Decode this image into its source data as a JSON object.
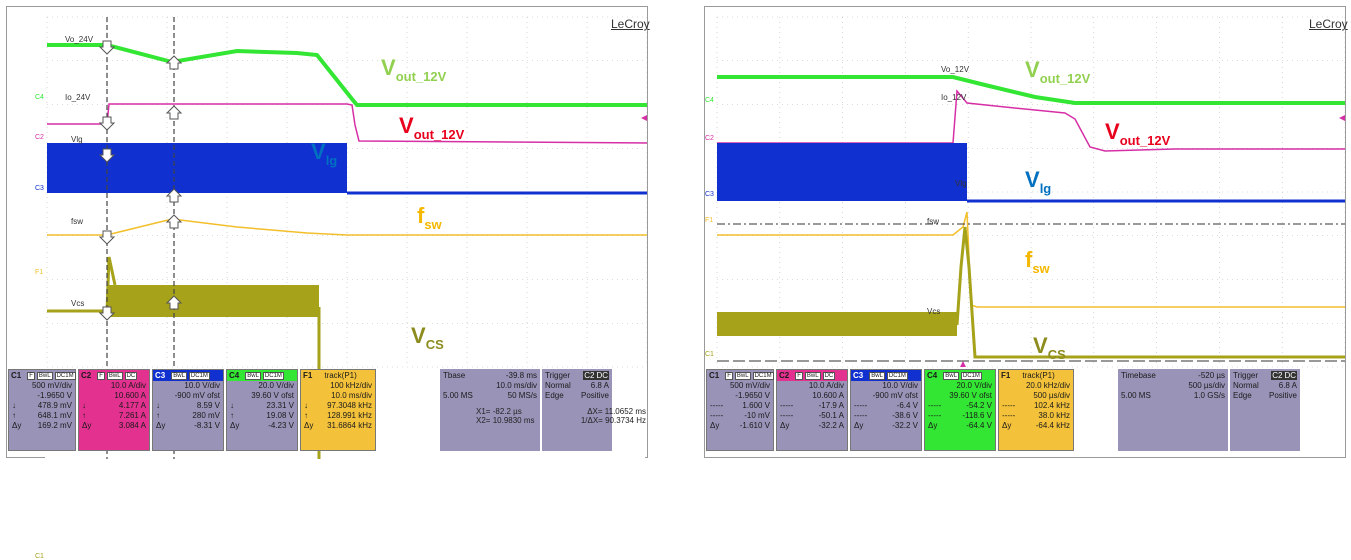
{
  "panels": [
    {
      "brand": "LeCroy",
      "labels": {
        "vout_green": {
          "main": "V",
          "sub": "out_12V"
        },
        "vout_red": {
          "main": "V",
          "sub": "out_12V"
        },
        "vlg": {
          "main": "V",
          "sub": "lg"
        },
        "fsw": {
          "main": "f",
          "sub": "sw"
        },
        "vcs": {
          "main": "V",
          "sub": "CS"
        }
      },
      "trace_tags": {
        "vo": "Vo_24V",
        "io": "Io_24V",
        "vlg": "Vlg",
        "fsw": "fsw",
        "vcs": "Vcs"
      },
      "channel_labels": [
        "C4",
        "C2",
        "C3",
        "F1",
        "C1"
      ],
      "channels": [
        {
          "name": "C1",
          "flags": [
            "F",
            "BwL",
            "DC1M"
          ],
          "rows": [
            [
              "",
              "500 mV/div"
            ],
            [
              "",
              "-1.9650 V"
            ],
            [
              "↓",
              "478.9 mV"
            ],
            [
              "↑",
              "648.1 mV"
            ],
            [
              "Δy",
              "169.2 mV"
            ]
          ]
        },
        {
          "name": "C2",
          "flags": [
            "F",
            "BwL",
            "DC"
          ],
          "rows": [
            [
              "",
              "10.0 A/div"
            ],
            [
              "",
              "10.600 A"
            ],
            [
              "↓",
              "4.177 A"
            ],
            [
              "↑",
              "7.261 A"
            ],
            [
              "Δy",
              "3.084 A"
            ]
          ]
        },
        {
          "name": "C3",
          "flags": [
            "BwL",
            "DC1M"
          ],
          "rows": [
            [
              "",
              "10.0 V/div"
            ],
            [
              "",
              "-900 mV ofst"
            ],
            [
              "↓",
              "8.59 V"
            ],
            [
              "↑",
              "280 mV"
            ],
            [
              "Δy",
              "-8.31 V"
            ]
          ]
        },
        {
          "name": "C4",
          "flags": [
            "BwL",
            "DC1M"
          ],
          "rows": [
            [
              "",
              "20.0 V/div"
            ],
            [
              "",
              "39.60 V ofst"
            ],
            [
              "↓",
              "23.31 V"
            ],
            [
              "↑",
              "19.08 V"
            ],
            [
              "Δy",
              "-4.23 V"
            ]
          ]
        },
        {
          "name": "F1",
          "title": "track(P1)",
          "rows": [
            [
              "",
              "100 kHz/div"
            ],
            [
              "",
              "10.0 ms/div"
            ],
            [
              "↓",
              "97.3048 kHz"
            ],
            [
              "↑",
              "128.991 kHz"
            ],
            [
              "Δy",
              "31.6864 kHz"
            ]
          ]
        }
      ],
      "timebase": {
        "label": "Tbase",
        "value": "-39.8 ms",
        "per_div": "10.0 ms/div",
        "samples": "5.00 MS",
        "rate": "50 MS/s"
      },
      "trigger": {
        "label": "Trigger",
        "channel": "C2",
        "coupling": "DC",
        "mode": "Normal",
        "level": "6.8 A",
        "type": "Edge",
        "slope": "Positive"
      },
      "cursors": {
        "x1_label": "X1=",
        "x1": "-82.2 µs",
        "dx_label": "ΔX=",
        "dx": "11.0652 ms",
        "x2_label": "X2=",
        "x2": "10.9830 ms",
        "inv_label": "1/ΔX=",
        "inv": "90.3734 Hz"
      }
    },
    {
      "brand": "LeCroy",
      "labels": {
        "vout_green": {
          "main": "V",
          "sub": "out_12V"
        },
        "vout_red": {
          "main": "V",
          "sub": "out_12V"
        },
        "vlg": {
          "main": "V",
          "sub": "lg"
        },
        "fsw": {
          "main": "f",
          "sub": "sw"
        },
        "vcs": {
          "main": "V",
          "sub": "CS"
        }
      },
      "trace_tags": {
        "vo": "Vo_12V",
        "io": "Io_12V",
        "vlg": "Vlg",
        "fsw": "fsw",
        "vcs": "Vcs"
      },
      "channel_labels": [
        "C4",
        "C2",
        "C3",
        "F1",
        "C1"
      ],
      "channels": [
        {
          "name": "C1",
          "flags": [
            "F",
            "BwL",
            "DC1M"
          ],
          "rows": [
            [
              "",
              "500 mV/div"
            ],
            [
              "",
              "-1.9650 V"
            ],
            [
              "-----",
              "1.600 V"
            ],
            [
              "-----",
              "-10 mV"
            ],
            [
              "Δy",
              "-1.610 V"
            ]
          ]
        },
        {
          "name": "C2",
          "flags": [
            "F",
            "BwL",
            "DC"
          ],
          "rows": [
            [
              "",
              "10.0 A/div"
            ],
            [
              "",
              "10.600 A"
            ],
            [
              "-----",
              "-17.9 A"
            ],
            [
              "-----",
              "-50.1 A"
            ],
            [
              "Δy",
              "-32.2 A"
            ]
          ]
        },
        {
          "name": "C3",
          "flags": [
            "BwL",
            "DC1M"
          ],
          "rows": [
            [
              "",
              "10.0 V/div"
            ],
            [
              "",
              "-900 mV ofst"
            ],
            [
              "-----",
              "-6.4 V"
            ],
            [
              "-----",
              "-38.6 V"
            ],
            [
              "Δy",
              "-32.2 V"
            ]
          ]
        },
        {
          "name": "C4",
          "flags": [
            "BwL",
            "DC1M"
          ],
          "rows": [
            [
              "",
              "20.0 V/div"
            ],
            [
              "",
              "39.60 V ofst"
            ],
            [
              "-----",
              "-54.2 V"
            ],
            [
              "-----",
              "-118.6 V"
            ],
            [
              "Δy",
              "-64.4 V"
            ]
          ]
        },
        {
          "name": "F1",
          "title": "track(P1)",
          "rows": [
            [
              "",
              "20.0 kHz/div"
            ],
            [
              "",
              "500 µs/div"
            ],
            [
              "-----",
              "102.4 kHz"
            ],
            [
              "-----",
              "38.0 kHz"
            ],
            [
              "Δy",
              "-64.4 kHz"
            ]
          ]
        }
      ],
      "timebase": {
        "label": "Timebase",
        "value": "-520 µs",
        "per_div": "500 µs/div",
        "samples": "5.00 MS",
        "rate": "1.0 GS/s"
      },
      "trigger": {
        "label": "Trigger",
        "channel": "C2",
        "coupling": "DC",
        "mode": "Normal",
        "level": "6.8 A",
        "type": "Edge",
        "slope": "Positive"
      }
    }
  ],
  "colors": {
    "green": "#33e633",
    "magenta": "#d62fa6",
    "blue": "#1030d0",
    "yellow": "#f2bf2a",
    "olive": "#a6a21a",
    "red": "#e8001c",
    "label_blue": "#0070c0",
    "label_gold": "#f5b800",
    "label_green": "#92d050",
    "label_olive": "#8c8c1e"
  }
}
